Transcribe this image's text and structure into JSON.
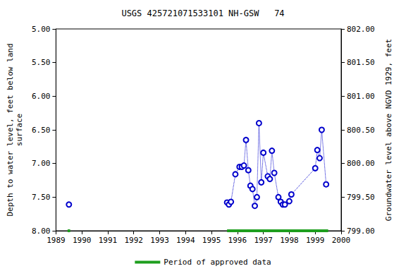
{
  "chart_data": {
    "type": "scatter",
    "title": "USGS 425721071533101 NH-GSW   74",
    "y_label": "Depth to water level, feet below land\nsurface",
    "y2_label": "Groundwater level above NGVD 1929, feet",
    "series": [
      {
        "color": "#0000cc",
        "marker": "circle",
        "line_style": "dotted",
        "x": [
          1989.5,
          null,
          1995.6,
          1995.67,
          1995.75,
          1995.92,
          1996.08,
          1996.17,
          1996.25,
          1996.33,
          1996.42,
          1996.5,
          1996.58,
          1996.67,
          1996.75,
          1996.83,
          1996.92,
          1997.0,
          1997.17,
          1997.25,
          1997.33,
          1997.42,
          1997.58,
          1997.67,
          1997.75,
          1997.83,
          1998.0,
          1998.08,
          1999.0,
          1999.08,
          1999.17,
          1999.25,
          1999.42
        ],
        "values": [
          7.61,
          null,
          7.58,
          7.61,
          7.57,
          7.16,
          7.05,
          7.05,
          7.03,
          6.65,
          7.1,
          7.33,
          7.38,
          7.63,
          7.5,
          6.4,
          7.28,
          6.84,
          7.19,
          7.23,
          6.81,
          7.14,
          7.5,
          7.57,
          7.61,
          7.61,
          7.56,
          7.46,
          7.07,
          6.8,
          6.92,
          6.5,
          7.31
        ]
      }
    ],
    "approved_periods": {
      "name": "Period of approved data",
      "color": "#1e9e1e",
      "ranges": [
        [
          1989.45,
          1989.55
        ],
        [
          1995.6,
          1999.5
        ]
      ]
    },
    "legend": "bottom",
    "grid": false,
    "xlim": [
      1989,
      2000
    ],
    "xticks": [
      1989,
      1990,
      1991,
      1992,
      1993,
      1994,
      1995,
      1996,
      1997,
      1998,
      1999,
      2000
    ],
    "ylim": [
      5,
      8
    ],
    "yticks": [
      {
        "value": 5,
        "label": "5.00"
      },
      {
        "value": 5.5,
        "label": "5.50"
      },
      {
        "value": 6,
        "label": "6.00"
      },
      {
        "value": 6.5,
        "label": "6.50"
      },
      {
        "value": 7,
        "label": "7.00"
      },
      {
        "value": 7.5,
        "label": "7.50"
      },
      {
        "value": 8,
        "label": "8.00"
      }
    ],
    "y2lim": [
      799,
      802
    ],
    "y2ticks": [
      {
        "value": 799,
        "label": "799.00"
      },
      {
        "value": 799.5,
        "label": "799.50"
      },
      {
        "value": 800,
        "label": "800.00"
      },
      {
        "value": 800.5,
        "label": "800.50"
      },
      {
        "value": 801,
        "label": "801.00"
      },
      {
        "value": 801.5,
        "label": "801.50"
      },
      {
        "value": 802,
        "label": "802.00"
      }
    ]
  }
}
